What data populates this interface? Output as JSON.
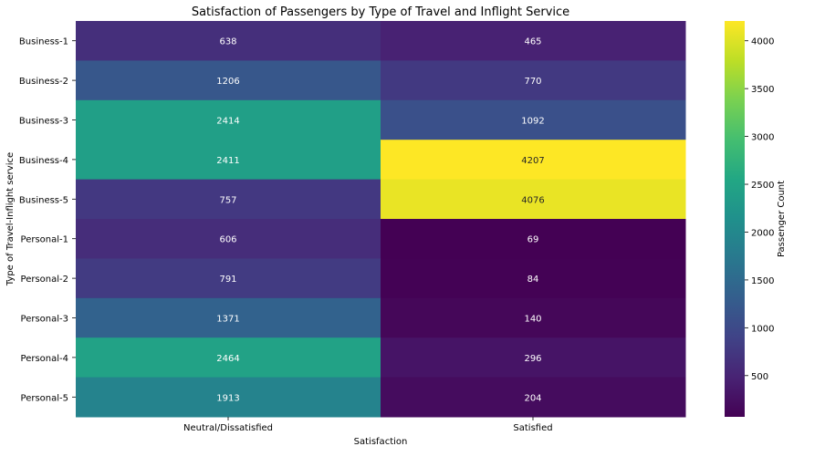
{
  "chart_data": {
    "type": "heatmap",
    "title": "Satisfaction of Passengers by Type of Travel and Inflight Service",
    "xlabel": "Satisfaction",
    "ylabel": "Type of Travel-Inflight service",
    "x_categories": [
      "Neutral/Dissatisfied",
      "Satisfied"
    ],
    "y_categories": [
      "Business-1",
      "Business-2",
      "Business-3",
      "Business-4",
      "Business-5",
      "Personal-1",
      "Personal-2",
      "Personal-3",
      "Personal-4",
      "Personal-5"
    ],
    "values": [
      [
        638,
        465
      ],
      [
        1206,
        770
      ],
      [
        2414,
        1092
      ],
      [
        2411,
        4207
      ],
      [
        757,
        4076
      ],
      [
        606,
        69
      ],
      [
        791,
        84
      ],
      [
        1371,
        140
      ],
      [
        2464,
        296
      ],
      [
        1913,
        204
      ]
    ],
    "colormap": "viridis",
    "vmin": 69,
    "vmax": 4207,
    "colorbar": {
      "label": "Passenger Count",
      "ticks": [
        500,
        1000,
        1500,
        2000,
        2500,
        3000,
        3500,
        4000
      ]
    }
  }
}
